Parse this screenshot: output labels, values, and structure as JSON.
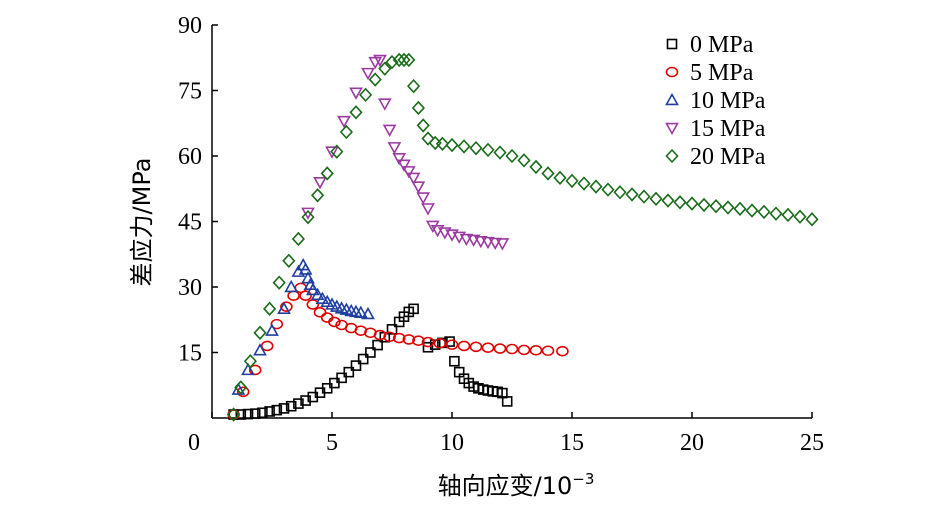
{
  "chart_data": {
    "type": "scatter",
    "xlabel": "轴向应变/10",
    "xlabel_exp": "−3",
    "ylabel": "差应力/MPa",
    "xlim": [
      0,
      25
    ],
    "ylim": [
      0,
      90
    ],
    "xticks": [
      0,
      5,
      10,
      15,
      20,
      25
    ],
    "yticks": [
      15,
      30,
      45,
      60,
      75,
      90
    ],
    "grid": false,
    "legend": "top-right",
    "series": [
      {
        "name": "0 MPa",
        "marker": "square",
        "color": "#000000",
        "x": [
          0.9,
          1.2,
          1.5,
          1.8,
          2.1,
          2.4,
          2.7,
          3.0,
          3.3,
          3.6,
          3.9,
          4.2,
          4.5,
          4.8,
          5.1,
          5.4,
          5.7,
          6.0,
          6.3,
          6.6,
          6.9,
          7.2,
          7.5,
          7.8,
          8.0,
          8.2,
          8.4,
          9.0,
          9.3,
          9.6,
          9.9,
          10.1,
          10.3,
          10.5,
          10.7,
          10.9,
          11.1,
          11.3,
          11.5,
          11.7,
          11.9,
          12.1,
          12.3
        ],
        "y": [
          0.8,
          0.8,
          0.9,
          1.0,
          1.2,
          1.5,
          1.8,
          2.2,
          2.7,
          3.3,
          4.0,
          4.8,
          5.8,
          6.8,
          8.0,
          9.2,
          10.5,
          12.0,
          13.5,
          15.0,
          16.7,
          18.5,
          20.3,
          22.0,
          23.2,
          24.3,
          25.0,
          16.2,
          16.8,
          17.2,
          17.5,
          13.0,
          10.5,
          9.0,
          8.0,
          7.2,
          6.8,
          6.5,
          6.3,
          6.1,
          6.0,
          5.7,
          3.8
        ]
      },
      {
        "name": "5 MPa",
        "marker": "circle",
        "color": "#e00000",
        "x": [
          0.9,
          1.3,
          1.8,
          2.3,
          2.7,
          3.1,
          3.4,
          3.7,
          3.9,
          4.2,
          4.5,
          4.8,
          5.1,
          5.4,
          5.8,
          6.2,
          6.6,
          7.0,
          7.4,
          7.8,
          8.2,
          8.6,
          9.0,
          9.5,
          10.0,
          10.5,
          11.0,
          11.5,
          12.0,
          12.5,
          13.0,
          13.5,
          14.0,
          14.6
        ],
        "y": [
          0.8,
          6.0,
          11.0,
          16.5,
          21.5,
          25.5,
          28.0,
          29.8,
          28.0,
          26.0,
          24.2,
          23.0,
          22.0,
          21.3,
          20.6,
          20.0,
          19.5,
          19.0,
          18.6,
          18.3,
          18.0,
          17.7,
          17.4,
          17.1,
          16.8,
          16.5,
          16.3,
          16.1,
          15.9,
          15.8,
          15.6,
          15.5,
          15.4,
          15.3
        ]
      },
      {
        "name": "10 MPa",
        "marker": "triangle-up",
        "color": "#1f3f9f",
        "x": [
          1.1,
          1.5,
          2.0,
          2.5,
          3.0,
          3.3,
          3.6,
          3.8,
          3.9,
          4.0,
          4.1,
          4.2,
          4.4,
          4.6,
          4.8,
          5.0,
          5.2,
          5.4,
          5.6,
          5.8,
          6.0,
          6.2,
          6.5
        ],
        "y": [
          6.5,
          11.0,
          15.5,
          20.0,
          25.0,
          30.0,
          33.5,
          35.0,
          34.0,
          32.0,
          30.5,
          29.3,
          28.2,
          27.3,
          26.6,
          26.0,
          25.5,
          25.1,
          24.8,
          24.5,
          24.3,
          24.1,
          23.8
        ]
      },
      {
        "name": "15 MPa",
        "marker": "triangle-down",
        "color": "#9b3aa0",
        "x": [
          4.0,
          4.5,
          5.0,
          5.5,
          6.0,
          6.5,
          6.8,
          7.0,
          7.2,
          7.4,
          7.6,
          7.8,
          8.0,
          8.2,
          8.4,
          8.6,
          8.8,
          9.0,
          9.2,
          9.4,
          9.7,
          10.0,
          10.3,
          10.6,
          10.9,
          11.2,
          11.5,
          11.8,
          12.1
        ],
        "y": [
          47.0,
          54.0,
          61.0,
          68.0,
          74.5,
          79.0,
          81.5,
          82.0,
          72.0,
          66.0,
          62.0,
          59.5,
          58.0,
          56.5,
          55.0,
          53.0,
          50.5,
          48.0,
          44.0,
          43.0,
          42.5,
          42.0,
          41.5,
          41.0,
          40.8,
          40.5,
          40.3,
          40.1,
          40.0
        ]
      },
      {
        "name": "20 MPa",
        "marker": "diamond",
        "color": "#1a6b1a",
        "x": [
          0.9,
          1.2,
          1.6,
          2.0,
          2.4,
          2.8,
          3.2,
          3.6,
          4.0,
          4.4,
          4.8,
          5.2,
          5.6,
          6.0,
          6.4,
          6.8,
          7.2,
          7.5,
          7.8,
          8.0,
          8.2,
          8.4,
          8.6,
          8.8,
          9.0,
          9.3,
          9.6,
          10.0,
          10.5,
          11.0,
          11.5,
          12.0,
          12.5,
          13.0,
          13.5,
          14.0,
          14.5,
          15.0,
          15.5,
          16.0,
          16.5,
          17.0,
          17.5,
          18.0,
          18.5,
          19.0,
          19.5,
          20.0,
          20.5,
          21.0,
          21.5,
          22.0,
          22.5,
          23.0,
          23.5,
          24.0,
          24.5,
          25.0
        ],
        "y": [
          0.8,
          7.0,
          13.0,
          19.5,
          25.0,
          31.0,
          36.0,
          41.0,
          46.0,
          51.0,
          56.0,
          61.0,
          65.5,
          70.0,
          74.0,
          77.5,
          80.0,
          81.5,
          82.0,
          82.0,
          82.0,
          76.0,
          71.0,
          67.0,
          64.0,
          63.0,
          62.8,
          62.5,
          62.2,
          61.8,
          61.4,
          60.8,
          60.0,
          59.0,
          57.5,
          56.0,
          55.0,
          54.3,
          53.7,
          53.0,
          52.3,
          51.7,
          51.2,
          50.7,
          50.2,
          49.8,
          49.4,
          49.1,
          48.8,
          48.5,
          48.2,
          47.9,
          47.5,
          47.2,
          46.8,
          46.5,
          46.1,
          45.5
        ]
      }
    ]
  }
}
